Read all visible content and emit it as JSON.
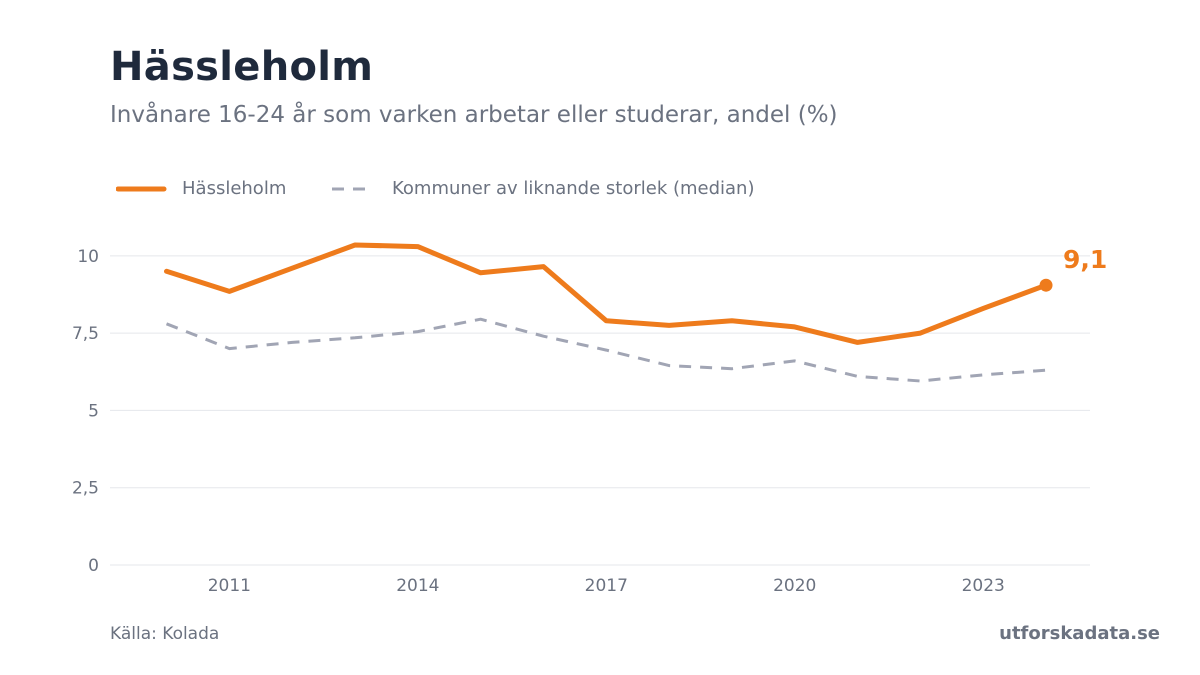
{
  "header": {
    "title": "Hässleholm",
    "subtitle": "Invånare 16-24 år som varken arbetar eller studerar, andel (%)"
  },
  "legend": {
    "primary": "Hässleholm",
    "median": "Kommuner av liknande storlek (median)"
  },
  "colors": {
    "primary": "#ee7b1c",
    "median": "#a1a5b4",
    "grid": "#e5e7eb",
    "axis_text": "#6b7280",
    "title": "#1f2a3c"
  },
  "chart_data": {
    "type": "line",
    "title": "Hässleholm",
    "subtitle": "Invånare 16-24 år som varken arbetar eller studerar, andel (%)",
    "x": [
      2010,
      2011,
      2012,
      2013,
      2014,
      2015,
      2016,
      2017,
      2018,
      2019,
      2020,
      2021,
      2022,
      2023,
      2024
    ],
    "xticks": [
      2011,
      2014,
      2017,
      2020,
      2023
    ],
    "xlim": [
      2009.1,
      2024.7
    ],
    "yticks": [
      0,
      2.5,
      5,
      7.5,
      10
    ],
    "ytick_labels": [
      "0",
      "2,5",
      "5",
      "7,5",
      "10"
    ],
    "ylim": [
      0,
      10.9
    ],
    "grid": true,
    "legend_position": "top-left",
    "series": [
      {
        "name": "Hässleholm",
        "style": "solid",
        "values": [
          9.5,
          8.85,
          9.6,
          10.35,
          10.3,
          9.45,
          9.65,
          7.9,
          7.75,
          7.9,
          7.7,
          7.2,
          7.5,
          8.3,
          9.05
        ]
      },
      {
        "name": "Kommuner av liknande storlek (median)",
        "style": "dashed",
        "values": [
          7.8,
          7.0,
          7.2,
          7.35,
          7.55,
          7.95,
          7.4,
          6.95,
          6.45,
          6.35,
          6.6,
          6.1,
          5.95,
          6.15,
          6.3
        ]
      }
    ],
    "annotation": {
      "series": "Hässleholm",
      "x": 2024,
      "label": "9,1"
    }
  },
  "footer": {
    "source": "Källa: Kolada",
    "brand": "utforskadata.se"
  }
}
